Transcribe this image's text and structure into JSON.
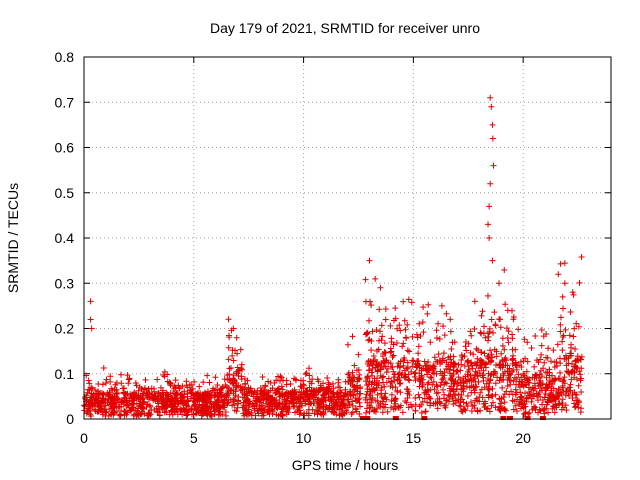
{
  "chart_data": {
    "type": "scatter",
    "title": "Day 179 of 2021, SRMTID for receiver unro",
    "xlabel": "GPS time / hours",
    "ylabel": "SRMTID / TECUs",
    "xlim": [
      0,
      24
    ],
    "ylim": [
      0,
      0.8
    ],
    "xticks": [
      0,
      5,
      10,
      15,
      20
    ],
    "yticks": [
      0,
      0.1,
      0.2,
      0.3,
      0.4,
      0.5,
      0.6,
      0.7,
      0.8
    ],
    "grid": true,
    "marker": "plus",
    "color": "#e00000",
    "segments": [
      {
        "x0": 0.0,
        "x1": 6.5,
        "base": 0.04,
        "spread": 0.06
      },
      {
        "x0": 6.5,
        "x1": 7.2,
        "base": 0.08,
        "spread": 0.12
      },
      {
        "x0": 7.2,
        "x1": 12.0,
        "base": 0.045,
        "spread": 0.05
      },
      {
        "x0": 12.0,
        "x1": 12.6,
        "base": 0.07,
        "spread": 0.09
      },
      {
        "x0": 12.8,
        "x1": 16.0,
        "base": 0.09,
        "spread": 0.2
      },
      {
        "x0": 16.0,
        "x1": 18.2,
        "base": 0.09,
        "spread": 0.16
      },
      {
        "x0": 18.2,
        "x1": 19.8,
        "base": 0.1,
        "spread": 0.2
      },
      {
        "x0": 19.8,
        "x1": 21.5,
        "base": 0.07,
        "spread": 0.12
      },
      {
        "x0": 21.5,
        "x1": 22.7,
        "base": 0.1,
        "spread": 0.22
      }
    ],
    "peaks": [
      {
        "x": 0.3,
        "y": 0.26
      },
      {
        "x": 0.3,
        "y": 0.22
      },
      {
        "x": 0.35,
        "y": 0.2
      },
      {
        "x": 6.8,
        "y": 0.2
      },
      {
        "x": 13.0,
        "y": 0.35
      },
      {
        "x": 13.5,
        "y": 0.29
      },
      {
        "x": 16.3,
        "y": 0.25
      },
      {
        "x": 17.8,
        "y": 0.26
      },
      {
        "x": 18.5,
        "y": 0.71
      },
      {
        "x": 18.55,
        "y": 0.69
      },
      {
        "x": 18.6,
        "y": 0.65
      },
      {
        "x": 18.62,
        "y": 0.62
      },
      {
        "x": 18.65,
        "y": 0.56
      },
      {
        "x": 18.5,
        "y": 0.52
      },
      {
        "x": 18.45,
        "y": 0.47
      },
      {
        "x": 18.4,
        "y": 0.43
      },
      {
        "x": 18.45,
        "y": 0.4
      },
      {
        "x": 18.6,
        "y": 0.35
      },
      {
        "x": 18.9,
        "y": 0.3
      },
      {
        "x": 19.3,
        "y": 0.24
      },
      {
        "x": 21.6,
        "y": 0.32
      },
      {
        "x": 21.9,
        "y": 0.3
      },
      {
        "x": 21.8,
        "y": 0.27
      }
    ],
    "zeros": [
      12.7,
      12.9,
      14.2,
      15.5,
      19.1,
      19.4,
      20.2,
      20.9
    ]
  }
}
